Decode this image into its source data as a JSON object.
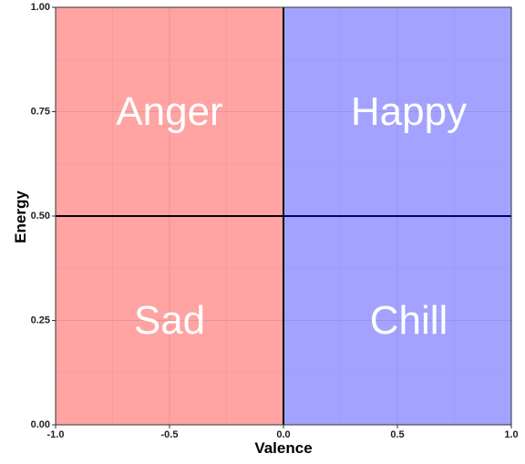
{
  "chart_data": {
    "type": "quadrant",
    "xlabel": "Valence",
    "ylabel": "Energy",
    "xlim": [
      -1.0,
      1.0
    ],
    "ylim": [
      0.0,
      1.0
    ],
    "x_ticks": [
      -1.0,
      -0.5,
      0.0,
      0.5,
      1.0
    ],
    "x_tick_labels": [
      "-1.0",
      "-0.5",
      "0.0",
      "0.5",
      "1.0"
    ],
    "y_ticks": [
      0.0,
      0.25,
      0.5,
      0.75,
      1.0
    ],
    "y_tick_labels": [
      "0.00",
      "0.25",
      "0.50",
      "0.75",
      "1.00"
    ],
    "grid": true,
    "x_divider": 0.0,
    "y_divider": 0.5,
    "regions": [
      {
        "name": "Anger",
        "x": [
          -1.0,
          0.0
        ],
        "y": [
          0.5,
          1.0
        ],
        "label_x": -0.5,
        "label_y": 0.75,
        "color": "#ffa3a3"
      },
      {
        "name": "Happy",
        "x": [
          0.0,
          1.0
        ],
        "y": [
          0.5,
          1.0
        ],
        "label_x": 0.55,
        "label_y": 0.75,
        "color": "#a3a3ff"
      },
      {
        "name": "Sad",
        "x": [
          -1.0,
          0.0
        ],
        "y": [
          0.0,
          0.5
        ],
        "label_x": -0.5,
        "label_y": 0.25,
        "color": "#ffa3a3"
      },
      {
        "name": "Chill",
        "x": [
          0.0,
          1.0
        ],
        "y": [
          0.0,
          0.5
        ],
        "label_x": 0.55,
        "label_y": 0.25,
        "color": "#a3a3ff"
      }
    ],
    "colors": {
      "negative": "#ffa3a3",
      "positive": "#a3a3ff",
      "label": "#ffffff",
      "grid_on_red": "#e59393",
      "grid_on_blue": "#9393e5",
      "divider": "#000000",
      "divider_on_blue": "#000066"
    }
  }
}
